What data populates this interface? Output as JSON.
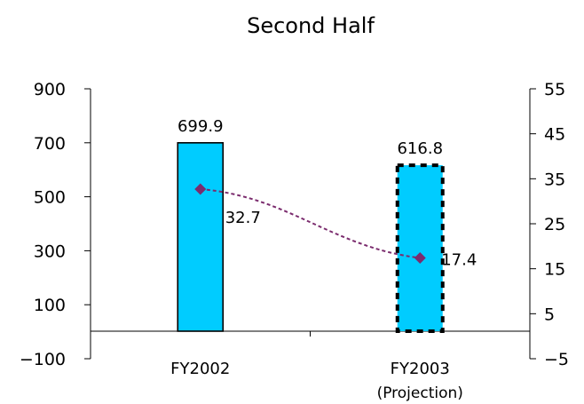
{
  "chart_data": {
    "type": "bar",
    "title": "Second Half",
    "categories": [
      "FY2002",
      "FY2003"
    ],
    "category_sublabels": [
      "",
      "(Projection)"
    ],
    "series": [
      {
        "values": [
          699.9,
          616.8
        ],
        "axis": "left",
        "kind": "bar",
        "color": "#00ccff",
        "data_labels": [
          "699.9",
          "616.8"
        ],
        "projected_index": 1
      },
      {
        "values": [
          32.7,
          17.4
        ],
        "axis": "right",
        "kind": "line",
        "color": "#7b2c6e",
        "marker": "diamond",
        "line_style": "dashed",
        "data_labels": [
          "32.7",
          "17.4"
        ]
      }
    ],
    "y_left": {
      "ticks": [
        -100,
        100,
        300,
        500,
        700,
        900
      ],
      "tick_labels": [
        "−100",
        "100",
        "300",
        "500",
        "700",
        "900"
      ],
      "ylim": [
        -100,
        900
      ],
      "negative_color": "#ff0000"
    },
    "y_right": {
      "ticks": [
        -5,
        5,
        15,
        25,
        35,
        45,
        55
      ],
      "tick_labels": [
        "−5",
        "5",
        "15",
        "25",
        "35",
        "45",
        "55"
      ],
      "ylim": [
        -5,
        55
      ]
    },
    "grid": false,
    "legend": "none"
  }
}
